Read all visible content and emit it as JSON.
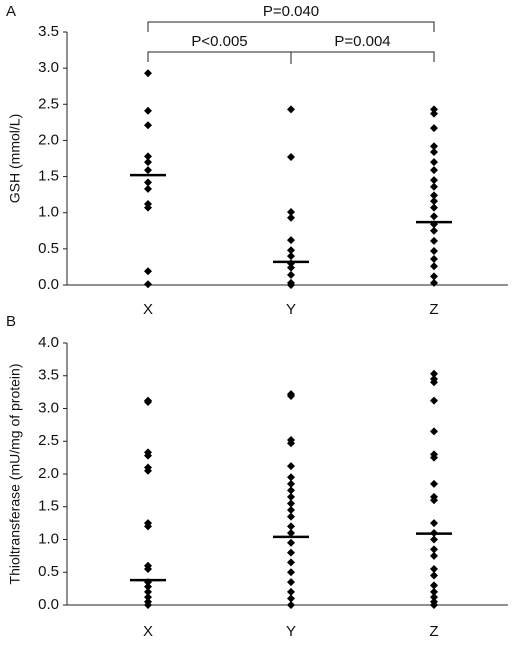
{
  "chart_data": [
    {
      "type": "dot",
      "panel_label": "A",
      "ylabel": "GSH (mmol/L)",
      "categories": [
        "X",
        "Y",
        "Z"
      ],
      "groups": [
        [
          2.93,
          2.41,
          2.21,
          1.78,
          1.7,
          1.59,
          1.42,
          1.33,
          1.12,
          1.07,
          0.19,
          0.01
        ],
        [
          2.43,
          1.77,
          1.01,
          0.93,
          0.62,
          0.48,
          0.4,
          0.3,
          0.24,
          0.14,
          0.03,
          0
        ],
        [
          2.43,
          2.37,
          2.17,
          1.92,
          1.84,
          1.7,
          1.59,
          1.45,
          1.36,
          1.24,
          1.16,
          1.07,
          0.95,
          0.84,
          0.75,
          0.61,
          0.47,
          0.36,
          0.26,
          0.12,
          0.03
        ]
      ],
      "medians": [
        1.52,
        0.32,
        0.87
      ],
      "color": "#000000",
      "ylim": [
        0,
        3.5
      ],
      "yticks": [
        {
          "value": 0,
          "label": "0.0"
        },
        0.5,
        {
          "value": 1,
          "label": "1.0"
        },
        1.5,
        {
          "value": 2,
          "label": "2.0"
        },
        2.5,
        {
          "value": 3,
          "label": "3.0"
        },
        3.5
      ],
      "annotations": [
        "P=0.040",
        "P<0.005",
        "P=0.004"
      ]
    },
    {
      "type": "dot",
      "panel_label": "B",
      "ylabel": "Thioltransferase (mU/mg of protein)",
      "categories": [
        "X",
        "Y",
        "Z"
      ],
      "groups": [
        [
          3.12,
          3.1,
          2.33,
          2.28,
          2.1,
          2.05,
          1.25,
          1.2,
          0.6,
          0.55,
          0.35,
          0.28,
          0.2,
          0.12,
          0.05,
          0
        ],
        [
          3.22,
          3.19,
          2.52,
          2.47,
          2.12,
          1.95,
          1.85,
          1.75,
          1.65,
          1.55,
          1.45,
          1.35,
          1.2,
          1.1,
          0.95,
          0.8,
          0.65,
          0.5,
          0.35,
          0.2,
          0.1,
          0
        ],
        [
          3.53,
          3.45,
          3.4,
          3.12,
          2.65,
          2.3,
          2.25,
          1.85,
          1.65,
          1.6,
          1.25,
          1.1,
          1,
          0.85,
          0.75,
          0.55,
          0.45,
          0.3,
          0.2,
          0.12,
          0.05,
          0
        ]
      ],
      "medians": [
        0.38,
        1.04,
        1.09
      ],
      "color": "#000000",
      "ylim": [
        0,
        4
      ],
      "yticks": [
        {
          "value": 0,
          "label": "0.0"
        },
        0.5,
        {
          "value": 1,
          "label": "1.0"
        },
        1.5,
        {
          "value": 2,
          "label": "2.0"
        },
        2.5,
        {
          "value": 3,
          "label": "3.0"
        },
        3.5,
        {
          "value": 4,
          "label": "4.0"
        }
      ]
    }
  ]
}
